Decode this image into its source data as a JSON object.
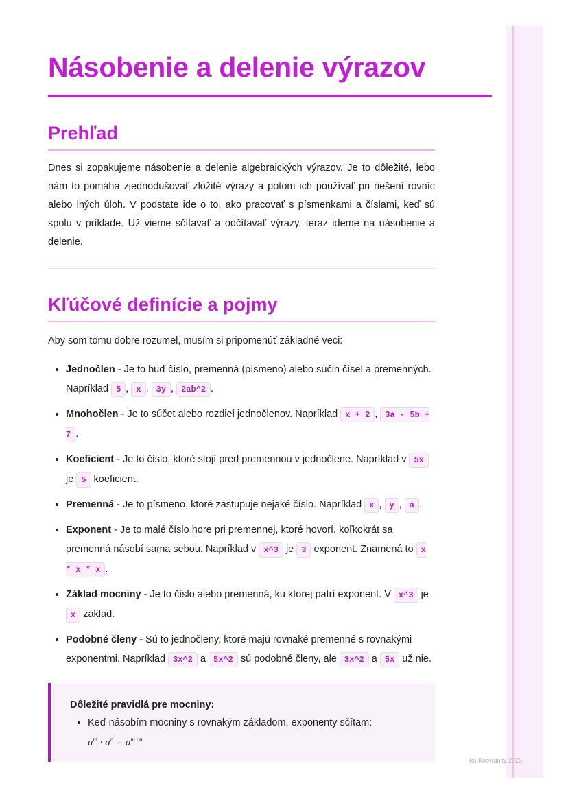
{
  "title": "Násobenie a delenie výrazov",
  "overview": {
    "heading": "Prehľad",
    "paragraph": "Dnes si zopakujeme násobenie a delenie algebraických výrazov. Je to dôležité, lebo nám to pomáha zjednodušovať zložité výrazy a potom ich používať pri riešení rovníc alebo iných úloh. V podstate ide o to, ako pracovať s písmenkami a číslami, keď sú spolu v príklade. Už vieme sčítavať a odčítavať výrazy, teraz ideme na násobenie a delenie."
  },
  "definitions": {
    "heading": "Kľúčové definície a pojmy",
    "intro": "Aby som tomu dobre rozumel, musím si pripomenúť základné veci:",
    "items": [
      {
        "term": "Jednočlen",
        "parts": [
          " - Je to buď číslo, premenná (písmeno) alebo súčin čísel a premenných. Napríklad ",
          {
            "code": "5"
          },
          ", ",
          {
            "code": "x"
          },
          ", ",
          {
            "code": "3y"
          },
          ", ",
          {
            "code": "2ab^2"
          },
          "."
        ]
      },
      {
        "term": "Mnohočlen",
        "parts": [
          " - Je to súčet alebo rozdiel jednočlenov. Napríklad ",
          {
            "code": "x + 2"
          },
          ", ",
          {
            "code": "3a - 5b + 7"
          },
          "."
        ]
      },
      {
        "term": "Koeficient",
        "parts": [
          " - Je to číslo, ktoré stojí pred premennou v jednočlene. Napríklad v ",
          {
            "code": "5x"
          },
          " je ",
          {
            "code": "5"
          },
          " koeficient."
        ]
      },
      {
        "term": "Premenná",
        "parts": [
          " - Je to písmeno, ktoré zastupuje nejaké číslo. Napríklad ",
          {
            "code": "x"
          },
          ", ",
          {
            "code": "y"
          },
          ", ",
          {
            "code": "a"
          },
          "."
        ]
      },
      {
        "term": "Exponent",
        "parts": [
          " - Je to malé číslo hore pri premennej, ktoré hovorí, koľkokrát sa premenná násobí sama sebou. Napríklad v ",
          {
            "code": "x^3"
          },
          " je ",
          {
            "code": "3"
          },
          " exponent. Znamená to ",
          {
            "code": "x * x * x"
          },
          "."
        ]
      },
      {
        "term": "Základ mocniny",
        "parts": [
          " - Je to číslo alebo premenná, ku ktorej patrí exponent. V ",
          {
            "code": "x^3"
          },
          " je ",
          {
            "code": "x"
          },
          " základ."
        ]
      },
      {
        "term": "Podobné členy",
        "parts": [
          " - Sú to jednočleny, ktoré majú rovnaké premenné s rovnakými exponentmi. Napríklad ",
          {
            "code": "3x^2"
          },
          " a ",
          {
            "code": "5x^2"
          },
          " sú podobné členy, ale ",
          {
            "code": "3x^2"
          },
          " a ",
          {
            "code": "5x"
          },
          " už nie."
        ]
      }
    ]
  },
  "callout": {
    "title": "Dôležité pravidlá pre mocniny:",
    "rule": "Keď násobím mocniny s rovnakým základom, exponenty sčítam:",
    "formula": {
      "base1": "a",
      "exp1": "m",
      "dot": " · ",
      "base2": "a",
      "exp2": "n",
      "eq": " = ",
      "base3": "a",
      "exp3": "m+n"
    }
  },
  "footer": {
    "copyright": "(c) Knowunity 2025"
  },
  "colors": {
    "accent": "#c21fd0",
    "code_bg": "#fbeefb",
    "callout_border": "#a020b0"
  }
}
